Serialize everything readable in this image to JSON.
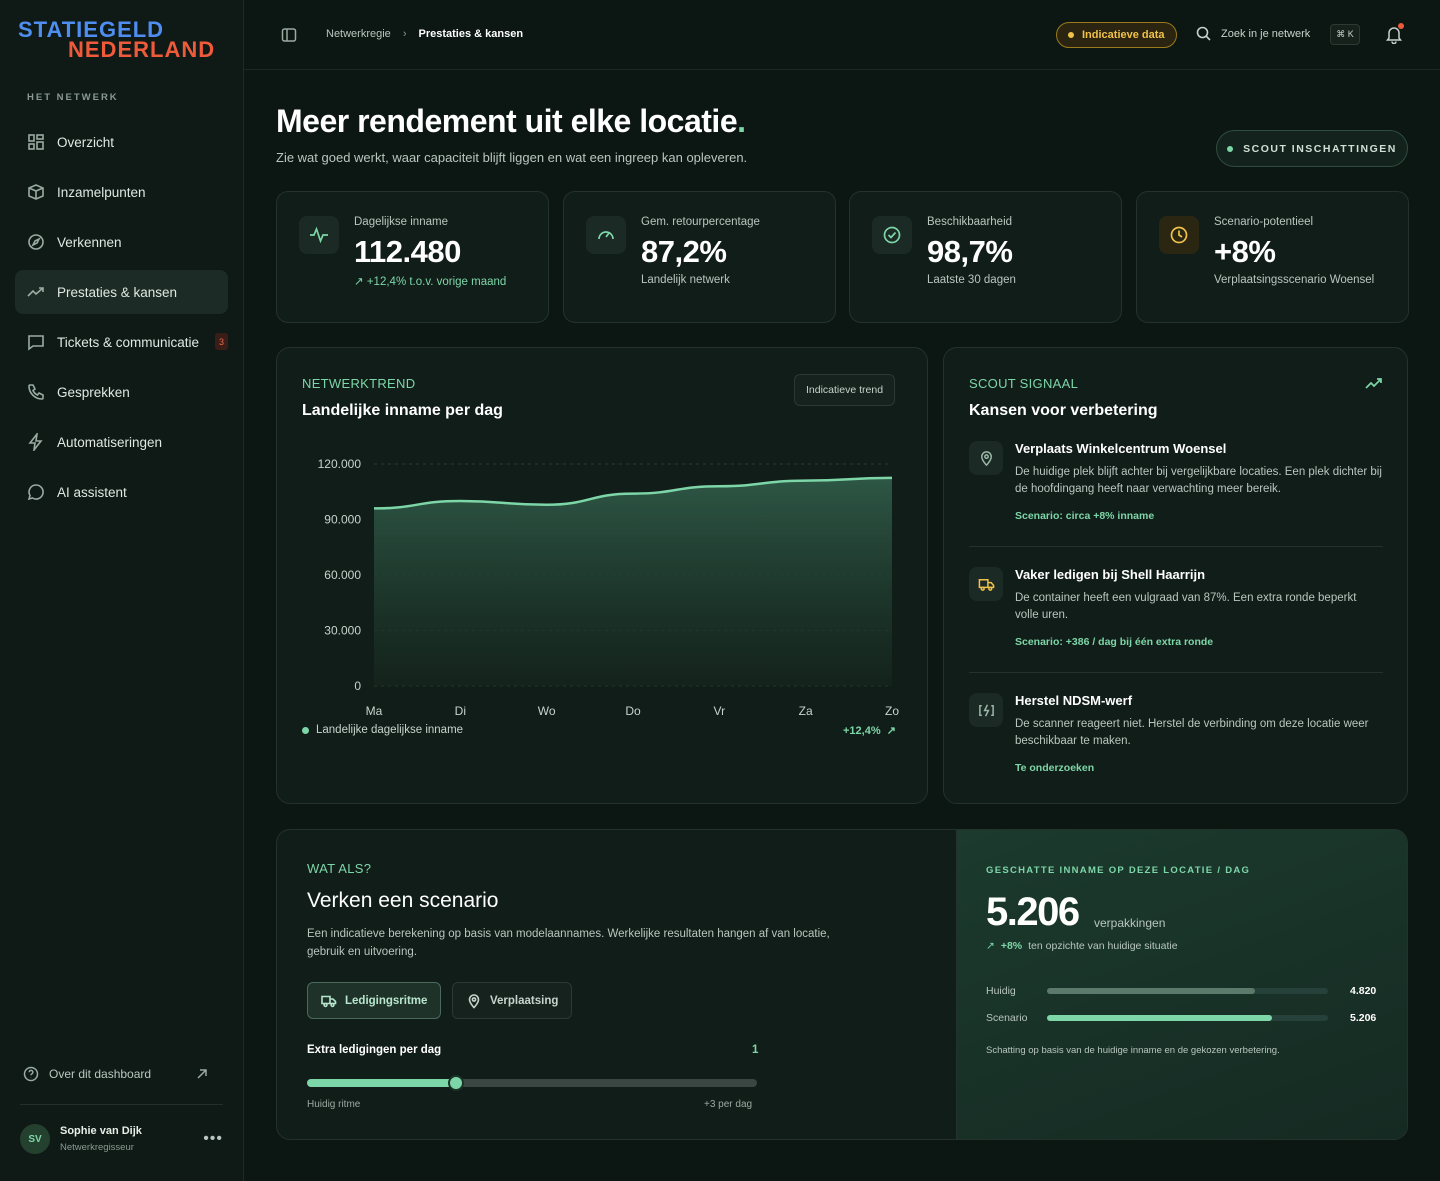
{
  "brand": {
    "line1": "STATIEGELD",
    "line2": "NEDERLAND"
  },
  "sidebar": {
    "section": "HET NETWERK",
    "items": [
      {
        "label": "Overzicht",
        "icon": "grid-icon"
      },
      {
        "label": "Inzamelpunten",
        "icon": "box-icon"
      },
      {
        "label": "Verkennen",
        "icon": "compass-icon"
      },
      {
        "label": "Prestaties & kansen",
        "icon": "trend-icon",
        "active": true
      },
      {
        "label": "Tickets & communicatie",
        "icon": "chat-icon",
        "badge": "3"
      },
      {
        "label": "Gesprekken",
        "icon": "phone-icon"
      },
      {
        "label": "Automatiseringen",
        "icon": "bolt-icon"
      },
      {
        "label": "AI assistent",
        "icon": "bubble-icon"
      }
    ],
    "about": "Over dit dashboard",
    "user": {
      "initials": "SV",
      "name": "Sophie van Dijk",
      "role": "Netwerkregisseur"
    }
  },
  "topbar": {
    "crumb1": "Netwerkregie",
    "crumb2": "Prestaties & kansen",
    "indicative": "Indicatieve data",
    "search": "Zoek in je netwerk",
    "shortcut": "⌘ K"
  },
  "header": {
    "title": "Meer rendement uit elke locatie",
    "title_dot": ".",
    "subtitle": "Zie wat goed werkt, waar capaciteit blijft liggen en wat een ingreep kan opleveren.",
    "scout_button": "SCOUT INSCHATTINGEN"
  },
  "kpis": [
    {
      "label": "Dagelijkse inname",
      "value": "112.480",
      "sub": "+12,4% t.o.v. vorige maand",
      "accent": "#7dd6a8"
    },
    {
      "label": "Gem. retourpercentage",
      "value": "87,2%",
      "sub": "Landelijk netwerk",
      "accent": "#7dd6a8"
    },
    {
      "label": "Beschikbaarheid",
      "value": "98,7%",
      "sub": "Laatste 30 dagen",
      "accent": "#7dd6a8"
    },
    {
      "label": "Scenario-potentieel",
      "value": "+8%",
      "sub": "Verplaatsingsscenario Woensel",
      "accent": "#f0c24a"
    }
  ],
  "trend_card": {
    "eyebrow": "NETWERKTREND",
    "title": "Landelijke inname per dag",
    "pill": "Indicatieve trend",
    "legend": "Landelijke dagelijkse inname",
    "change": "+12,4%"
  },
  "chart_data": {
    "type": "area",
    "categories": [
      "Ma",
      "Di",
      "Wo",
      "Do",
      "Vr",
      "Za",
      "Zo"
    ],
    "series": [
      {
        "name": "Landelijke dagelijkse inname",
        "values": [
          96000,
          100000,
          98000,
          104000,
          108000,
          111000,
          112480
        ]
      }
    ],
    "yticks": [
      "120.000",
      "90.000",
      "60.000",
      "30.000",
      "0"
    ],
    "ylim": [
      0,
      120000
    ],
    "grid": true,
    "color": "#7dd6a8"
  },
  "signal_card": {
    "eyebrow": "SCOUT SIGNAAL",
    "title": "Kansen voor verbetering",
    "items": [
      {
        "title": "Verplaats Winkelcentrum Woensel",
        "text": "De huidige plek blijft achter bij vergelijkbare locaties. Een plek dichter bij de hoofdingang heeft naar verwachting meer bereik.",
        "link": "Scenario: circa +8% inname",
        "icon": "pin-icon"
      },
      {
        "title": "Vaker ledigen bij Shell Haarrijn",
        "text": "De container heeft een vulgraad van 87%. Een extra ronde beperkt volle uren.",
        "link": "Scenario: +386 / dag bij één extra ronde",
        "icon": "truck-icon"
      },
      {
        "title": "Herstel NDSM-werf",
        "text": "De scanner reageert niet. Herstel de verbinding om deze locatie weer beschikbaar te maken.",
        "link": "Te onderzoeken",
        "icon": "battery-bolt-icon"
      }
    ]
  },
  "scenario": {
    "eyebrow": "WAT ALS?",
    "title": "Verken een scenario",
    "text": "Een indicatieve berekening op basis van modelaannames. Werkelijke resultaten hangen af van locatie, gebruik en uitvoering.",
    "tab1": "Ledigingsritme",
    "tab2": "Verplaatsing",
    "slider_label": "Extra ledigingen per dag",
    "slider_value": "1",
    "slider_fraction": 0.33,
    "tick_left": "Huidig ritme",
    "tick_right": "+3 per dag",
    "est_label": "GESCHATTE INNAME OP DEZE LOCATIE / DAG",
    "est_value": "5.206",
    "est_unit": "verpakkingen",
    "est_change": "+8%",
    "est_change_text": "ten opzichte van huidige situatie",
    "bars": [
      {
        "label": "Huidig",
        "value": "4.820",
        "fraction": 0.74,
        "color": "#5b7a6c"
      },
      {
        "label": "Scenario",
        "value": "5.206",
        "fraction": 0.8,
        "color": "#7dd6a8"
      }
    ],
    "note": "Schatting op basis van de huidige inname en de gekozen verbetering."
  }
}
